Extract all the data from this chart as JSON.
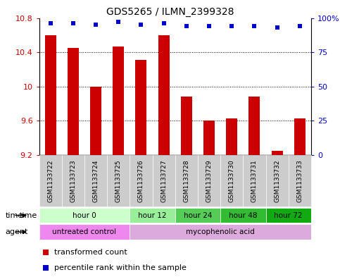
{
  "title": "GDS5265 / ILMN_2399328",
  "samples": [
    "GSM1133722",
    "GSM1133723",
    "GSM1133724",
    "GSM1133725",
    "GSM1133726",
    "GSM1133727",
    "GSM1133728",
    "GSM1133729",
    "GSM1133730",
    "GSM1133731",
    "GSM1133732",
    "GSM1133733"
  ],
  "bar_values": [
    10.6,
    10.45,
    10.0,
    10.47,
    10.31,
    10.6,
    9.88,
    9.6,
    9.63,
    9.88,
    9.25,
    9.63
  ],
  "percentile_values": [
    96,
    96,
    95,
    97,
    95,
    96,
    94,
    94,
    94,
    94,
    93,
    94
  ],
  "bar_bottom": 9.2,
  "ylim_left": [
    9.2,
    10.8
  ],
  "ylim_right": [
    0,
    100
  ],
  "yticks_left": [
    9.2,
    9.6,
    10.0,
    10.4,
    10.8
  ],
  "yticks_right": [
    0,
    25,
    50,
    75,
    100
  ],
  "ytick_labels_left": [
    "9.2",
    "9.6",
    "10",
    "10.4",
    "10.8"
  ],
  "ytick_labels_right": [
    "0",
    "25",
    "50",
    "75",
    "100%"
  ],
  "bar_color": "#cc0000",
  "dot_color": "#0000cc",
  "time_groups": [
    {
      "label": "hour 0",
      "start": 0,
      "end": 3,
      "color": "#ccffcc"
    },
    {
      "label": "hour 12",
      "start": 4,
      "end": 5,
      "color": "#99ee99"
    },
    {
      "label": "hour 24",
      "start": 6,
      "end": 7,
      "color": "#55cc55"
    },
    {
      "label": "hour 48",
      "start": 8,
      "end": 9,
      "color": "#33bb33"
    },
    {
      "label": "hour 72",
      "start": 10,
      "end": 11,
      "color": "#11aa11"
    }
  ],
  "agent_groups": [
    {
      "label": "untreated control",
      "start": 0,
      "end": 3,
      "color": "#ee88ee"
    },
    {
      "label": "mycophenolic acid",
      "start": 4,
      "end": 11,
      "color": "#ddaadd"
    }
  ],
  "sample_bg_color": "#cccccc",
  "legend_bar_label": "transformed count",
  "legend_dot_label": "percentile rank within the sample"
}
